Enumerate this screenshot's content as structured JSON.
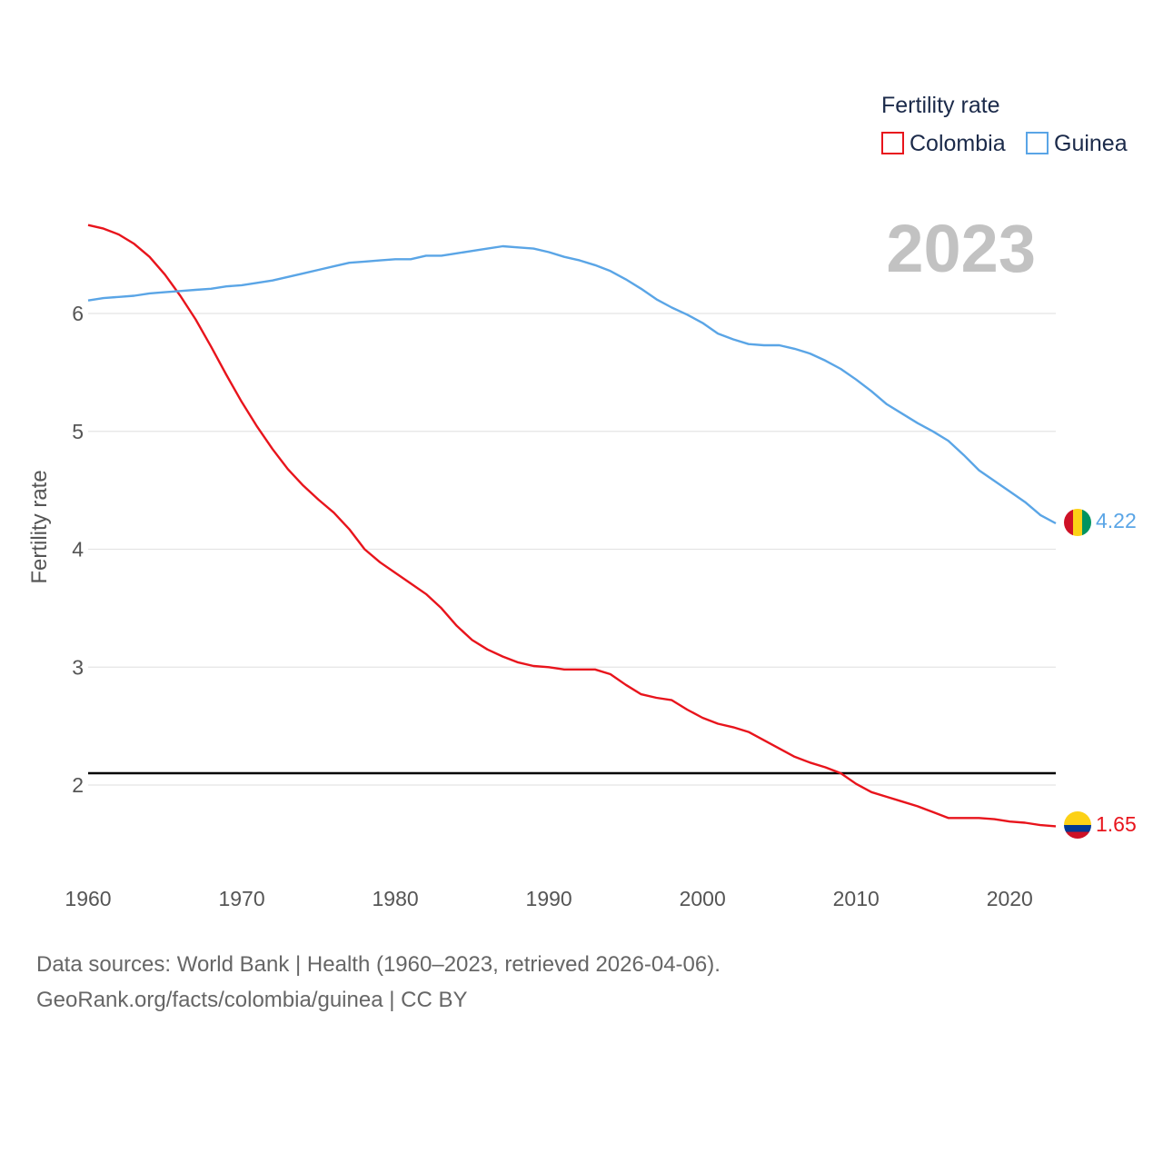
{
  "chart_data": {
    "type": "line",
    "title": "",
    "year_display": "2023",
    "ylabel": "Fertility rate",
    "xlabel": "",
    "xlim": [
      1960,
      2023
    ],
    "ylim": [
      1.45,
      6.75
    ],
    "x_ticks": [
      1960,
      1970,
      1980,
      1990,
      2000,
      2010,
      2020
    ],
    "y_ticks": [
      2,
      3,
      4,
      5,
      6
    ],
    "reference_line": {
      "value": 2.1,
      "color": "#000000"
    },
    "legend": {
      "title": "Fertility rate",
      "position": "top-right"
    },
    "x": [
      1960,
      1961,
      1962,
      1963,
      1964,
      1965,
      1966,
      1967,
      1968,
      1969,
      1970,
      1971,
      1972,
      1973,
      1974,
      1975,
      1976,
      1977,
      1978,
      1979,
      1980,
      1981,
      1982,
      1983,
      1984,
      1985,
      1986,
      1987,
      1988,
      1989,
      1990,
      1991,
      1992,
      1993,
      1994,
      1995,
      1996,
      1997,
      1998,
      1999,
      2000,
      2001,
      2002,
      2003,
      2004,
      2005,
      2006,
      2007,
      2008,
      2009,
      2010,
      2011,
      2012,
      2013,
      2014,
      2015,
      2016,
      2017,
      2018,
      2019,
      2020,
      2021,
      2022,
      2023
    ],
    "series": [
      {
        "name": "Colombia",
        "color": "#e8141c",
        "end_label": "1.65",
        "values": [
          6.75,
          6.72,
          6.67,
          6.59,
          6.48,
          6.33,
          6.15,
          5.95,
          5.72,
          5.48,
          5.25,
          5.04,
          4.85,
          4.68,
          4.54,
          4.42,
          4.31,
          4.17,
          4.0,
          3.89,
          3.8,
          3.71,
          3.62,
          3.5,
          3.35,
          3.23,
          3.15,
          3.09,
          3.04,
          3.01,
          3.0,
          2.98,
          2.98,
          2.98,
          2.94,
          2.85,
          2.77,
          2.74,
          2.72,
          2.64,
          2.57,
          2.52,
          2.49,
          2.45,
          2.38,
          2.31,
          2.24,
          2.19,
          2.15,
          2.1,
          2.01,
          1.94,
          1.9,
          1.86,
          1.82,
          1.77,
          1.72,
          1.72,
          1.72,
          1.71,
          1.69,
          1.68,
          1.66,
          1.65
        ]
      },
      {
        "name": "Guinea",
        "color": "#5aa5e6",
        "end_label": "4.22",
        "values": [
          6.11,
          6.13,
          6.14,
          6.15,
          6.17,
          6.18,
          6.19,
          6.2,
          6.21,
          6.23,
          6.24,
          6.26,
          6.28,
          6.31,
          6.34,
          6.37,
          6.4,
          6.43,
          6.44,
          6.45,
          6.46,
          6.46,
          6.49,
          6.49,
          6.51,
          6.53,
          6.55,
          6.57,
          6.56,
          6.55,
          6.52,
          6.48,
          6.45,
          6.41,
          6.36,
          6.29,
          6.21,
          6.12,
          6.05,
          5.99,
          5.92,
          5.83,
          5.78,
          5.74,
          5.73,
          5.73,
          5.7,
          5.66,
          5.6,
          5.53,
          5.44,
          5.34,
          5.23,
          5.15,
          5.07,
          5.0,
          4.92,
          4.8,
          4.67,
          4.58,
          4.49,
          4.4,
          4.29,
          4.22
        ]
      }
    ]
  },
  "footer": {
    "line1": "Data sources: World Bank | Health (1960–2023, retrieved 2026-04-06).",
    "line2": "GeoRank.org/facts/colombia/guinea | CC BY"
  },
  "flags": {
    "colombia": [
      "#FCD116",
      "#003893",
      "#CE1126"
    ],
    "guinea": [
      "#CE1126",
      "#FCD116",
      "#009460"
    ]
  }
}
